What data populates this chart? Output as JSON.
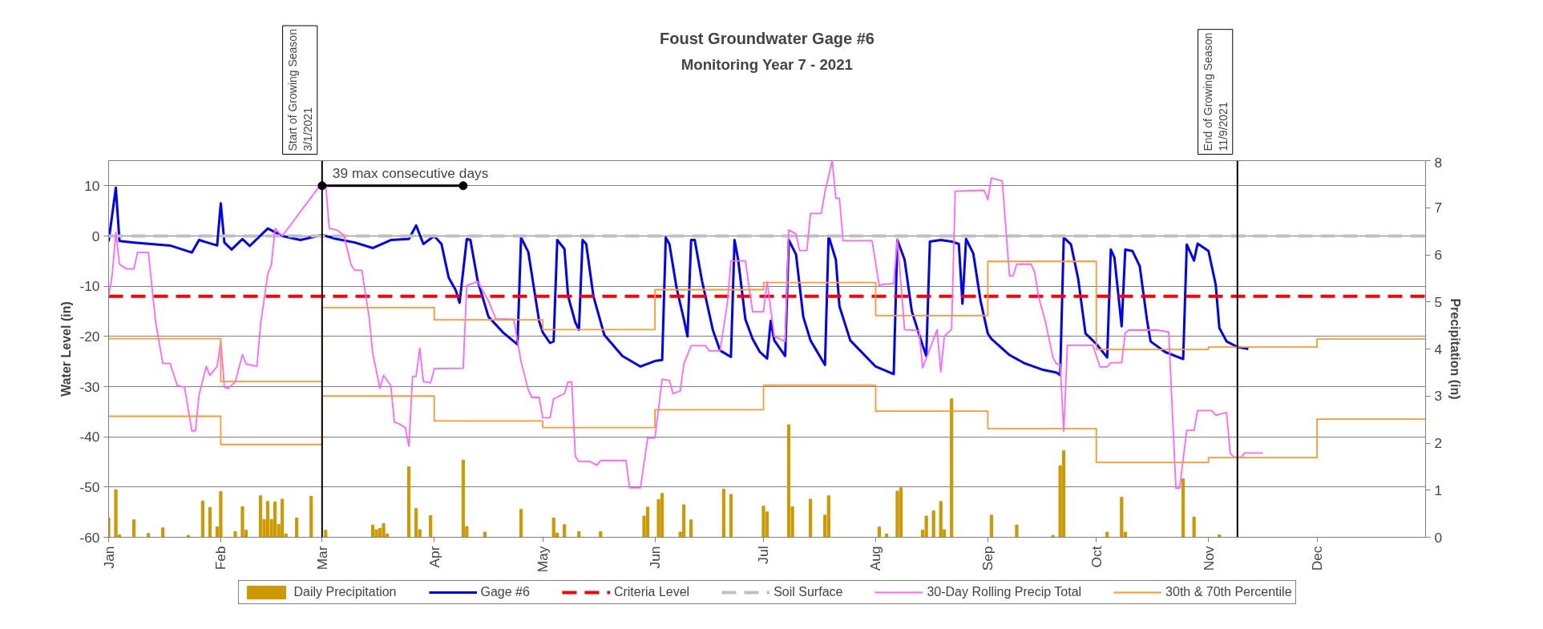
{
  "chart_data": {
    "type": "line",
    "title": "Foust Groundwater Gage #6",
    "subtitle": "Monitoring Year 7 - 2021",
    "ylabel": "Water Level (in)",
    "y2label": "Precipitation (in)",
    "xlim": [
      "2021-01-01",
      "2021-12-31"
    ],
    "xticks": [
      {
        "value": "2021-01-01",
        "label": "Jan"
      },
      {
        "value": "2021-02-01",
        "label": "Feb"
      },
      {
        "value": "2021-03-01",
        "label": "Mar"
      },
      {
        "value": "2021-04-01",
        "label": "Apr"
      },
      {
        "value": "2021-05-01",
        "label": "May"
      },
      {
        "value": "2021-06-01",
        "label": "Jun"
      },
      {
        "value": "2021-07-01",
        "label": "Jul"
      },
      {
        "value": "2021-08-01",
        "label": "Aug"
      },
      {
        "value": "2021-09-01",
        "label": "Sep"
      },
      {
        "value": "2021-10-01",
        "label": "Oct"
      },
      {
        "value": "2021-11-01",
        "label": "Nov"
      },
      {
        "value": "2021-12-01",
        "label": "Dec"
      }
    ],
    "ylim": [
      -60,
      15
    ],
    "yticks": [
      -60,
      -50,
      -40,
      -30,
      -20,
      -10,
      0,
      10
    ],
    "y2lim": [
      0,
      8
    ],
    "y2ticks": [
      0,
      1,
      2,
      3,
      4,
      5,
      6,
      7,
      8
    ],
    "grid": "y",
    "legend": "bottom",
    "ref_lines": [
      {
        "axis": "x",
        "value": "2021-03-01",
        "label": "Start of Growing Season\n3/1/2021",
        "color": "#000000"
      },
      {
        "axis": "x",
        "value": "2021-11-09",
        "label": "End of Growing Season\n11/9/2021",
        "color": "#000000"
      }
    ],
    "annotations": [
      {
        "text": "39 max consecutive days",
        "x": "2021-03-03",
        "y": 10
      }
    ],
    "series": [
      {
        "name": "Daily Precipitation",
        "type": "bar",
        "axis": "y2",
        "color": "#cc9900",
        "x": [
          "2021-01-01",
          "2021-01-03",
          "2021-01-04",
          "2021-01-08",
          "2021-01-12",
          "2021-01-16",
          "2021-01-23",
          "2021-01-27",
          "2021-01-29",
          "2021-01-31",
          "2021-02-01",
          "2021-02-05",
          "2021-02-07",
          "2021-02-08",
          "2021-02-12",
          "2021-02-13",
          "2021-02-14",
          "2021-02-15",
          "2021-02-16",
          "2021-02-17",
          "2021-02-18",
          "2021-02-19",
          "2021-02-22",
          "2021-02-26",
          "2021-03-02",
          "2021-03-15",
          "2021-03-16",
          "2021-03-17",
          "2021-03-18",
          "2021-03-19",
          "2021-03-25",
          "2021-03-27",
          "2021-03-28",
          "2021-03-31",
          "2021-04-09",
          "2021-04-10",
          "2021-04-15",
          "2021-04-25",
          "2021-05-04",
          "2021-05-05",
          "2021-05-07",
          "2021-05-11",
          "2021-05-17",
          "2021-05-29",
          "2021-05-30",
          "2021-06-02",
          "2021-06-03",
          "2021-06-08",
          "2021-06-09",
          "2021-06-11",
          "2021-06-20",
          "2021-06-22",
          "2021-07-01",
          "2021-07-02",
          "2021-07-08",
          "2021-07-09",
          "2021-07-14",
          "2021-07-18",
          "2021-07-19",
          "2021-08-02",
          "2021-08-04",
          "2021-08-07",
          "2021-08-08",
          "2021-08-14",
          "2021-08-15",
          "2021-08-17",
          "2021-08-19",
          "2021-08-20",
          "2021-08-22",
          "2021-09-02",
          "2021-09-09",
          "2021-09-19",
          "2021-09-21",
          "2021-09-22",
          "2021-10-04",
          "2021-10-08",
          "2021-10-09",
          "2021-10-25",
          "2021-10-28",
          "2021-11-04"
        ],
        "values": [
          0.41,
          1.01,
          0.05,
          0.37,
          0.08,
          0.2,
          0.04,
          0.77,
          0.63,
          0.22,
          0.97,
          0.12,
          0.65,
          0.15,
          0.88,
          0.38,
          0.76,
          0.38,
          0.75,
          0.27,
          0.81,
          0.07,
          0.41,
          0.87,
          0.15,
          0.26,
          0.16,
          0.19,
          0.29,
          0.07,
          1.5,
          0.61,
          0.16,
          0.46,
          1.64,
          0.23,
          0.11,
          0.59,
          0.41,
          0.09,
          0.27,
          0.12,
          0.12,
          0.45,
          0.64,
          0.8,
          0.93,
          0.11,
          0.69,
          0.37,
          1.02,
          0.91,
          0.66,
          0.54,
          2.39,
          0.65,
          0.81,
          0.47,
          0.88,
          0.22,
          0.07,
          0.98,
          1.05,
          0.15,
          0.45,
          0.56,
          0.76,
          0.16,
          2.94,
          0.47,
          0.26,
          0.04,
          1.52,
          1.84,
          0.11,
          0.85,
          0.11,
          1.24,
          0.43,
          0.05
        ]
      },
      {
        "name": "Gage #6",
        "color": "#0000ff",
        "x": [
          "2021-01-01",
          "2021-01-03",
          "2021-01-04",
          "2021-01-08",
          "2021-01-18",
          "2021-01-24",
          "2021-01-26",
          "2021-01-31",
          "2021-02-01",
          "2021-02-02",
          "2021-02-04",
          "2021-02-07",
          "2021-02-09",
          "2021-02-14",
          "2021-02-18",
          "2021-02-23",
          "2021-03-01",
          "2021-03-05",
          "2021-03-10",
          "2021-03-15",
          "2021-03-20",
          "2021-03-25",
          "2021-03-27",
          "2021-03-29",
          "2021-04-01",
          "2021-04-03",
          "2021-04-05",
          "2021-04-07",
          "2021-04-08",
          "2021-04-10",
          "2021-04-11",
          "2021-04-13",
          "2021-04-16",
          "2021-04-20",
          "2021-04-24",
          "2021-04-25",
          "2021-04-27",
          "2021-04-30",
          "2021-05-01",
          "2021-05-03",
          "2021-05-04",
          "2021-05-05",
          "2021-05-07",
          "2021-05-08",
          "2021-05-10",
          "2021-05-11",
          "2021-05-12",
          "2021-05-13",
          "2021-05-15",
          "2021-05-18",
          "2021-05-23",
          "2021-05-28",
          "2021-06-01",
          "2021-06-03",
          "2021-06-04",
          "2021-06-05",
          "2021-06-07",
          "2021-06-09",
          "2021-06-10",
          "2021-06-11",
          "2021-06-12",
          "2021-06-14",
          "2021-06-17",
          "2021-06-19",
          "2021-06-22",
          "2021-06-23",
          "2021-06-24",
          "2021-06-26",
          "2021-06-28",
          "2021-06-30",
          "2021-07-02",
          "2021-07-03",
          "2021-07-04",
          "2021-07-07",
          "2021-07-08",
          "2021-07-10",
          "2021-07-12",
          "2021-07-14",
          "2021-07-18",
          "2021-07-19",
          "2021-07-21",
          "2021-07-22",
          "2021-07-25",
          "2021-08-01",
          "2021-08-06",
          "2021-08-07",
          "2021-08-09",
          "2021-08-11",
          "2021-08-14",
          "2021-08-15",
          "2021-08-16",
          "2021-08-19",
          "2021-08-22",
          "2021-08-24",
          "2021-08-25",
          "2021-08-26",
          "2021-08-28",
          "2021-08-30",
          "2021-09-01",
          "2021-09-02",
          "2021-09-07",
          "2021-09-11",
          "2021-09-16",
          "2021-09-20",
          "2021-09-21",
          "2021-09-22",
          "2021-09-24",
          "2021-09-26",
          "2021-09-28",
          "2021-10-01",
          "2021-10-04",
          "2021-10-05",
          "2021-10-06",
          "2021-10-08",
          "2021-10-09",
          "2021-10-11",
          "2021-10-13",
          "2021-10-15",
          "2021-10-16",
          "2021-10-20",
          "2021-10-25",
          "2021-10-26",
          "2021-10-28",
          "2021-10-29",
          "2021-11-01",
          "2021-11-03",
          "2021-11-04",
          "2021-11-06",
          "2021-11-09",
          "2021-11-12"
        ],
        "values": [
          -1.1,
          9.6,
          -1.0,
          -1.3,
          -1.9,
          -3.3,
          -0.8,
          -1.9,
          6.5,
          -1.3,
          -2.7,
          -0.6,
          -2.0,
          1.5,
          0,
          -0.8,
          0.2,
          -0.6,
          -1.3,
          -2.4,
          -0.8,
          -0.6,
          2.1,
          -1.6,
          0,
          -1.6,
          -8.3,
          -10.9,
          -13.3,
          -0.6,
          -0.8,
          -8.9,
          -16.1,
          -19.2,
          -21.6,
          -0.3,
          -3.2,
          -17.0,
          -19.2,
          -21.3,
          -21.0,
          -0.8,
          -2.6,
          -12.0,
          -17.2,
          -18.7,
          -0.8,
          -1.6,
          -12.0,
          -19.7,
          -23.9,
          -26.0,
          -24.9,
          -24.7,
          -0.3,
          -1.6,
          -10.4,
          -16.6,
          -20.0,
          -0.8,
          -0.8,
          -8.9,
          -18.7,
          -22.8,
          -24.1,
          -0.8,
          -4.7,
          -16.6,
          -20.5,
          -23.1,
          -24.4,
          -16.9,
          -20.8,
          -23.9,
          -0.8,
          -3.7,
          -16.1,
          -20.8,
          -25.7,
          0,
          -4.7,
          -14.0,
          -20.8,
          -26.0,
          -27.5,
          -0.8,
          -4.7,
          -15.0,
          -21.8,
          -23.9,
          -1.1,
          -0.8,
          -1.1,
          -1.6,
          -13.5,
          -0.6,
          -3.5,
          -12.9,
          -19.4,
          -20.5,
          -23.7,
          -25.3,
          -26.6,
          -27.2,
          -27.7,
          -0.3,
          -1.7,
          -8.6,
          -19.4,
          -21.5,
          -24.2,
          -2.7,
          -4.3,
          -18.0,
          -2.7,
          -3.0,
          -6.0,
          -16.7,
          -21.0,
          -23.1,
          -24.5,
          -1.7,
          -4.9,
          -1.5,
          -3.0,
          -9.7,
          -18.3,
          -21.0,
          -22.1,
          -22.5
        ]
      },
      {
        "name": "Criteria Level",
        "line_style": "dashed",
        "color": "#ff0000",
        "x": [
          "2021-01-01",
          "2021-12-31"
        ],
        "values": [
          -12,
          -12
        ]
      },
      {
        "name": "Soil Surface",
        "line_style": "dashed",
        "color": "#c0c0c0",
        "x": [
          "2021-01-01",
          "2021-12-31"
        ],
        "values": [
          0,
          0
        ]
      },
      {
        "name": "30-Day Rolling Precip Total",
        "axis": "y2",
        "color": "#ff66ff",
        "x": [
          "2021-01-01",
          "2021-01-02",
          "2021-01-03",
          "2021-01-04",
          "2021-01-06",
          "2021-01-08",
          "2021-01-09",
          "2021-01-12",
          "2021-01-14",
          "2021-01-16",
          "2021-01-18",
          "2021-01-20",
          "2021-01-22",
          "2021-01-24",
          "2021-01-25",
          "2021-01-26",
          "2021-01-28",
          "2021-01-29",
          "2021-01-31",
          "2021-02-01",
          "2021-02-02",
          "2021-02-03",
          "2021-02-05",
          "2021-02-07",
          "2021-02-08",
          "2021-02-11",
          "2021-02-12",
          "2021-02-14",
          "2021-02-15",
          "2021-02-16",
          "2021-02-18",
          "2021-03-01",
          "2021-03-02",
          "2021-03-03",
          "2021-03-05",
          "2021-03-07",
          "2021-03-09",
          "2021-03-10",
          "2021-03-12",
          "2021-03-14",
          "2021-03-15",
          "2021-03-17",
          "2021-03-18",
          "2021-03-20",
          "2021-03-21",
          "2021-03-22",
          "2021-03-24",
          "2021-03-25",
          "2021-03-26",
          "2021-03-27",
          "2021-03-28",
          "2021-03-29",
          "2021-03-31",
          "2021-04-01",
          "2021-04-09",
          "2021-04-10",
          "2021-04-13",
          "2021-04-16",
          "2021-04-18",
          "2021-04-23",
          "2021-04-25",
          "2021-04-27",
          "2021-04-28",
          "2021-04-30",
          "2021-05-01",
          "2021-05-03",
          "2021-05-04",
          "2021-05-07",
          "2021-05-08",
          "2021-05-09",
          "2021-05-10",
          "2021-05-11",
          "2021-05-14",
          "2021-05-16",
          "2021-05-17",
          "2021-05-24",
          "2021-05-25",
          "2021-05-28",
          "2021-05-30",
          "2021-06-01",
          "2021-06-03",
          "2021-06-05",
          "2021-06-06",
          "2021-06-08",
          "2021-06-09",
          "2021-06-11",
          "2021-06-15",
          "2021-06-16",
          "2021-06-19",
          "2021-06-21",
          "2021-06-22",
          "2021-06-26",
          "2021-06-28",
          "2021-07-01",
          "2021-07-02",
          "2021-07-04",
          "2021-07-07",
          "2021-07-08",
          "2021-07-10",
          "2021-07-11",
          "2021-07-13",
          "2021-07-14",
          "2021-07-17",
          "2021-07-18",
          "2021-07-20",
          "2021-07-21",
          "2021-07-22",
          "2021-07-23",
          "2021-07-31",
          "2021-08-02",
          "2021-08-03",
          "2021-08-06",
          "2021-08-07",
          "2021-08-09",
          "2021-08-13",
          "2021-08-14",
          "2021-08-15",
          "2021-08-18",
          "2021-08-19",
          "2021-08-20",
          "2021-08-22",
          "2021-08-23",
          "2021-08-31",
          "2021-09-01",
          "2021-09-02",
          "2021-09-05",
          "2021-09-07",
          "2021-09-08",
          "2021-09-09",
          "2021-09-13",
          "2021-09-14",
          "2021-09-15",
          "2021-09-17",
          "2021-09-19",
          "2021-09-20",
          "2021-09-21",
          "2021-09-22",
          "2021-09-23",
          "2021-09-30",
          "2021-10-02",
          "2021-10-04",
          "2021-10-05",
          "2021-10-08",
          "2021-10-09",
          "2021-10-10",
          "2021-10-18",
          "2021-10-21",
          "2021-10-23",
          "2021-10-24",
          "2021-10-26",
          "2021-10-28",
          "2021-10-29",
          "2021-11-02",
          "2021-11-03",
          "2021-11-06",
          "2021-11-07",
          "2021-11-08",
          "2021-11-10",
          "2021-11-11",
          "2021-11-16"
        ],
        "values": [
          5.12,
          5.57,
          6.48,
          5.8,
          5.7,
          5.7,
          6.05,
          6.05,
          4.57,
          3.69,
          3.69,
          3.22,
          3.19,
          2.26,
          2.26,
          3.02,
          3.63,
          3.44,
          3.63,
          4.16,
          3.19,
          3.16,
          3.3,
          3.88,
          3.68,
          3.63,
          4.52,
          5.59,
          5.79,
          6.56,
          6.4,
          7.53,
          7.5,
          6.56,
          6.53,
          6.42,
          5.79,
          5.67,
          5.67,
          4.68,
          3.91,
          3.16,
          3.44,
          3.22,
          2.44,
          2.42,
          2.33,
          1.93,
          3.41,
          3.42,
          4.02,
          3.31,
          3.28,
          3.58,
          3.59,
          5.35,
          5.43,
          5.02,
          4.64,
          4.63,
          3.73,
          3.13,
          2.97,
          2.97,
          2.54,
          2.54,
          2.94,
          3.05,
          3.3,
          3.3,
          1.72,
          1.61,
          1.61,
          1.53,
          1.63,
          1.63,
          1.05,
          1.05,
          2.11,
          2.11,
          3.36,
          3.33,
          3.05,
          3.11,
          3.68,
          4.07,
          4.07,
          3.96,
          3.96,
          4.96,
          5.87,
          5.87,
          4.79,
          4.79,
          5.43,
          4.27,
          4.16,
          6.53,
          6.44,
          6.09,
          6.09,
          6.88,
          6.88,
          7.34,
          8.0,
          7.2,
          7.2,
          6.3,
          6.3,
          5.35,
          5.37,
          5.39,
          6.34,
          4.41,
          4.39,
          3.6,
          3.8,
          4.41,
          3.51,
          4.27,
          4.42,
          7.35,
          7.37,
          7.17,
          7.63,
          7.57,
          5.55,
          5.55,
          5.8,
          5.8,
          5.62,
          5.12,
          4.56,
          3.82,
          3.68,
          3.68,
          2.25,
          4.08,
          4.08,
          3.62,
          3.62,
          3.71,
          3.71,
          4.34,
          4.4,
          4.4,
          4.36,
          1.04,
          1.04,
          2.27,
          2.27,
          2.69,
          2.69,
          2.59,
          2.65,
          1.79,
          1.7,
          1.7,
          1.79,
          1.79
        ]
      },
      {
        "name": "30th & 70th Percentile",
        "type": "step",
        "axis": "y2",
        "color": "#ff9933",
        "x": [
          "2021-01-01",
          "2021-02-01",
          "2021-03-01",
          "2021-04-01",
          "2021-05-01",
          "2021-06-01",
          "2021-07-01",
          "2021-08-01",
          "2021-09-01",
          "2021-10-01",
          "2021-11-01",
          "2021-12-01",
          "2021-12-31"
        ],
        "values": [
          4.22,
          3.31,
          4.88,
          4.62,
          4.41,
          5.26,
          5.41,
          4.71,
          5.86,
          3.99,
          4.04,
          4.21,
          4.21
        ]
      },
      {
        "type": "step",
        "axis": "y2",
        "color": "#ff9933",
        "x": [
          "2021-01-01",
          "2021-02-01",
          "2021-03-01",
          "2021-04-01",
          "2021-05-01",
          "2021-06-01",
          "2021-07-01",
          "2021-08-01",
          "2021-09-01",
          "2021-10-01",
          "2021-11-01",
          "2021-12-01",
          "2021-12-31"
        ],
        "values": [
          2.57,
          1.97,
          3.0,
          2.47,
          2.33,
          2.71,
          3.23,
          2.68,
          2.31,
          1.59,
          1.69,
          2.51,
          2.51
        ]
      },
      {
        "marker": "circle",
        "color": "#000000",
        "x": [
          "2021-03-01",
          "2021-04-09"
        ],
        "values": [
          10,
          10
        ]
      }
    ]
  }
}
